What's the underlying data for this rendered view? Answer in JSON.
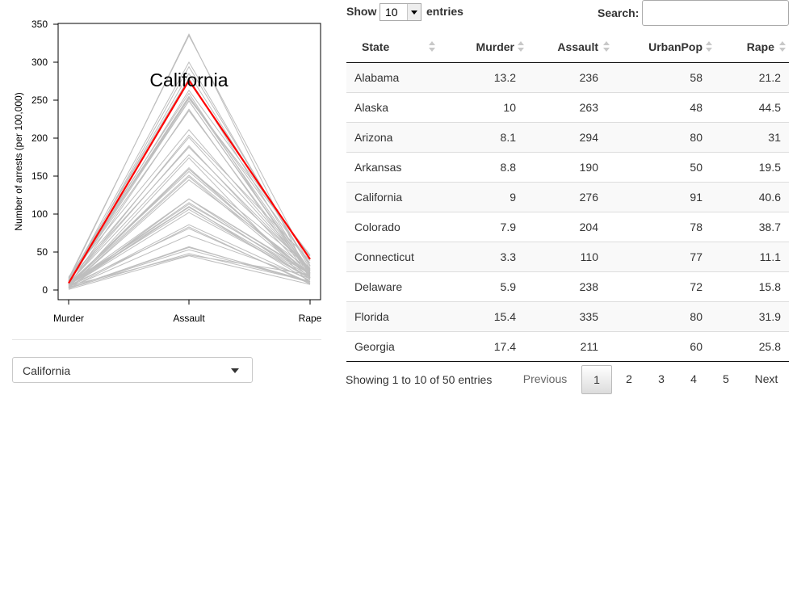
{
  "plot": {
    "y_axis_title": "Number of arrests (per 100,000)",
    "highlight_label": "California",
    "chart_data": {
      "type": "line",
      "categories": [
        "Murder",
        "Assault",
        "Rape"
      ],
      "ylim": [
        0,
        350
      ],
      "yticks": [
        0,
        50,
        100,
        150,
        200,
        250,
        300,
        350
      ],
      "highlight": "California",
      "highlight_color": "#ff0000",
      "background_line_color": "#bebebe",
      "series": [
        {
          "name": "Alabama",
          "values": [
            13.2,
            236,
            21.2
          ]
        },
        {
          "name": "Alaska",
          "values": [
            10,
            263,
            44.5
          ]
        },
        {
          "name": "Arizona",
          "values": [
            8.1,
            294,
            31
          ]
        },
        {
          "name": "Arkansas",
          "values": [
            8.8,
            190,
            19.5
          ]
        },
        {
          "name": "California",
          "values": [
            9,
            276,
            40.6
          ]
        },
        {
          "name": "Colorado",
          "values": [
            7.9,
            204,
            38.7
          ]
        },
        {
          "name": "Connecticut",
          "values": [
            3.3,
            110,
            11.1
          ]
        },
        {
          "name": "Delaware",
          "values": [
            5.9,
            238,
            15.8
          ]
        },
        {
          "name": "Florida",
          "values": [
            15.4,
            335,
            31.9
          ]
        },
        {
          "name": "Georgia",
          "values": [
            17.4,
            211,
            25.8
          ]
        },
        {
          "values": [
            5.3,
            46,
            20.2
          ]
        },
        {
          "values": [
            2.6,
            120,
            14.2
          ]
        },
        {
          "values": [
            10.4,
            249,
            24
          ]
        },
        {
          "values": [
            7.2,
            113,
            21
          ]
        },
        {
          "values": [
            2.2,
            56,
            11.3
          ]
        },
        {
          "values": [
            6,
            115,
            18
          ]
        },
        {
          "values": [
            9.7,
            109,
            16.3
          ]
        },
        {
          "values": [
            15.4,
            249,
            22.2
          ]
        },
        {
          "values": [
            2.1,
            83,
            7.8
          ]
        },
        {
          "values": [
            11.3,
            300,
            27.8
          ]
        },
        {
          "values": [
            4.4,
            149,
            16.3
          ]
        },
        {
          "values": [
            12.1,
            255,
            35.1
          ]
        },
        {
          "values": [
            2.7,
            72,
            14.9
          ]
        },
        {
          "values": [
            16.1,
            259,
            17.1
          ]
        },
        {
          "values": [
            9,
            178,
            28.2
          ]
        },
        {
          "values": [
            6,
            109,
            16.4
          ]
        },
        {
          "values": [
            4.3,
            102,
            16.5
          ]
        },
        {
          "values": [
            12.2,
            252,
            46
          ]
        },
        {
          "values": [
            2.1,
            57,
            9.5
          ]
        },
        {
          "values": [
            7.4,
            159,
            18.8
          ]
        },
        {
          "values": [
            11.4,
            285,
            32.1
          ]
        },
        {
          "values": [
            11.1,
            254,
            26.1
          ]
        },
        {
          "values": [
            13,
            337,
            16.1
          ]
        },
        {
          "values": [
            0.8,
            45,
            7.3
          ]
        },
        {
          "values": [
            7.3,
            120,
            21.4
          ]
        },
        {
          "values": [
            6.6,
            151,
            20
          ]
        },
        {
          "values": [
            4.9,
            159,
            29.3
          ]
        },
        {
          "values": [
            6.3,
            106,
            14.9
          ]
        },
        {
          "values": [
            3.4,
            174,
            8.3
          ]
        },
        {
          "values": [
            14.4,
            279,
            22.5
          ]
        },
        {
          "values": [
            3.8,
            86,
            12.8
          ]
        },
        {
          "values": [
            13.2,
            188,
            26.9
          ]
        },
        {
          "values": [
            12.7,
            201,
            25.5
          ]
        },
        {
          "values": [
            3.2,
            120,
            22.9
          ]
        },
        {
          "values": [
            2.2,
            48,
            11.2
          ]
        },
        {
          "values": [
            8.5,
            156,
            20.7
          ]
        },
        {
          "values": [
            4,
            145,
            26.2
          ]
        },
        {
          "values": [
            5.7,
            81,
            9.3
          ]
        },
        {
          "values": [
            2.6,
            53,
            10.8
          ]
        },
        {
          "values": [
            6.8,
            161,
            15.6
          ]
        }
      ]
    }
  },
  "state_select": {
    "value": "California"
  },
  "table": {
    "length": {
      "show_label": "Show",
      "value": "10",
      "entries_label": "entries"
    },
    "search": {
      "label": "Search:",
      "value": ""
    },
    "columns": [
      "State",
      "Murder",
      "Assault",
      "UrbanPop",
      "Rape"
    ],
    "rows": [
      [
        "Alabama",
        "13.2",
        "236",
        "58",
        "21.2"
      ],
      [
        "Alaska",
        "10",
        "263",
        "48",
        "44.5"
      ],
      [
        "Arizona",
        "8.1",
        "294",
        "80",
        "31"
      ],
      [
        "Arkansas",
        "8.8",
        "190",
        "50",
        "19.5"
      ],
      [
        "California",
        "9",
        "276",
        "91",
        "40.6"
      ],
      [
        "Colorado",
        "7.9",
        "204",
        "78",
        "38.7"
      ],
      [
        "Connecticut",
        "3.3",
        "110",
        "77",
        "11.1"
      ],
      [
        "Delaware",
        "5.9",
        "238",
        "72",
        "15.8"
      ],
      [
        "Florida",
        "15.4",
        "335",
        "80",
        "31.9"
      ],
      [
        "Georgia",
        "17.4",
        "211",
        "60",
        "25.8"
      ]
    ],
    "info": "Showing 1 to 10 of 50 entries",
    "pagination": {
      "previous": "Previous",
      "pages": [
        "1",
        "2",
        "3",
        "4",
        "5"
      ],
      "current": "1",
      "next": "Next"
    }
  }
}
